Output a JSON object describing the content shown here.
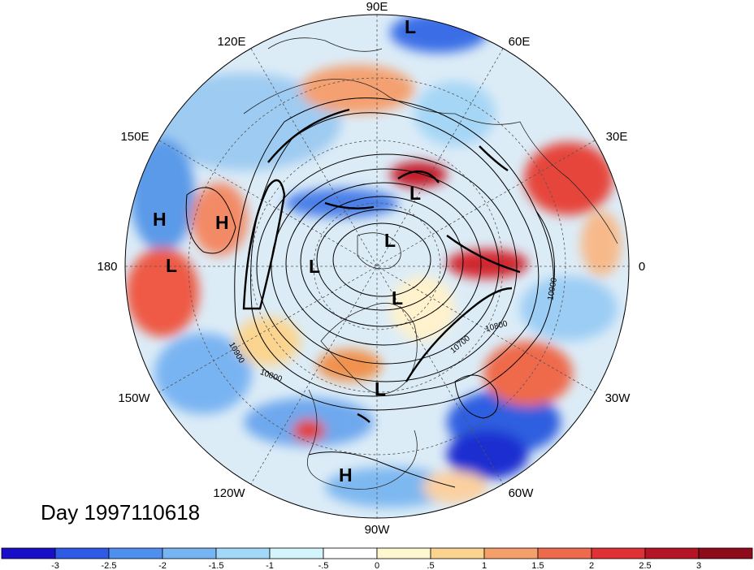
{
  "title": "Day 1997110618",
  "longitude_labels": [
    {
      "name": "lon-label-90e",
      "text": "90E"
    },
    {
      "name": "lon-label-60e",
      "text": "60E"
    },
    {
      "name": "lon-label-120e",
      "text": "120E"
    },
    {
      "name": "lon-label-150e",
      "text": "150E"
    },
    {
      "name": "lon-label-30e",
      "text": "30E"
    },
    {
      "name": "lon-label-180",
      "text": "180"
    },
    {
      "name": "lon-label-0",
      "text": "0"
    },
    {
      "name": "lon-label-150w",
      "text": "150W"
    },
    {
      "name": "lon-label-30w",
      "text": "30W"
    },
    {
      "name": "lon-label-120w",
      "text": "120W"
    },
    {
      "name": "lon-label-60w",
      "text": "60W"
    },
    {
      "name": "lon-label-90w",
      "text": "90W"
    }
  ],
  "pressure_centers": [
    {
      "name": "low-center-north-pacific",
      "text": "L"
    },
    {
      "name": "low-center-siberia",
      "text": "L"
    },
    {
      "name": "low-center-arctic",
      "text": "L"
    },
    {
      "name": "low-center-east-siberian",
      "text": "L"
    },
    {
      "name": "low-center-canada",
      "text": "L"
    },
    {
      "name": "low-center-labrador",
      "text": "L"
    },
    {
      "name": "low-center-pacific",
      "text": "L"
    },
    {
      "name": "high-center-far-pacific",
      "text": "H"
    },
    {
      "name": "high-center-pacific",
      "text": "H"
    },
    {
      "name": "high-center-mexico",
      "text": "H"
    }
  ],
  "contour_labels": {
    "c10900_pacific": "10900",
    "c10800_pacific": "10800",
    "c10900_atlantic": "10900",
    "c10800_atlantic": "10800",
    "c10700_atlantic": "10700"
  },
  "colorbar": {
    "labels": [
      "-3",
      "-2.5",
      "-2",
      "-1.5",
      "-1",
      "-.5",
      "0",
      ".5",
      "1",
      "1.5",
      "2",
      "2.5",
      "3"
    ],
    "colors": [
      "#1a0fc8",
      "#2e5ae6",
      "#4f8fef",
      "#76b4f4",
      "#a2d8f8",
      "#d4f4fb",
      "#ffffff",
      "#fff7cf",
      "#fbd58f",
      "#f5a06a",
      "#ee6a4c",
      "#de3236",
      "#b41424",
      "#8e0b1c"
    ]
  },
  "colors": {
    "ocean_background": "#dfeef8",
    "contour": "#000000"
  }
}
